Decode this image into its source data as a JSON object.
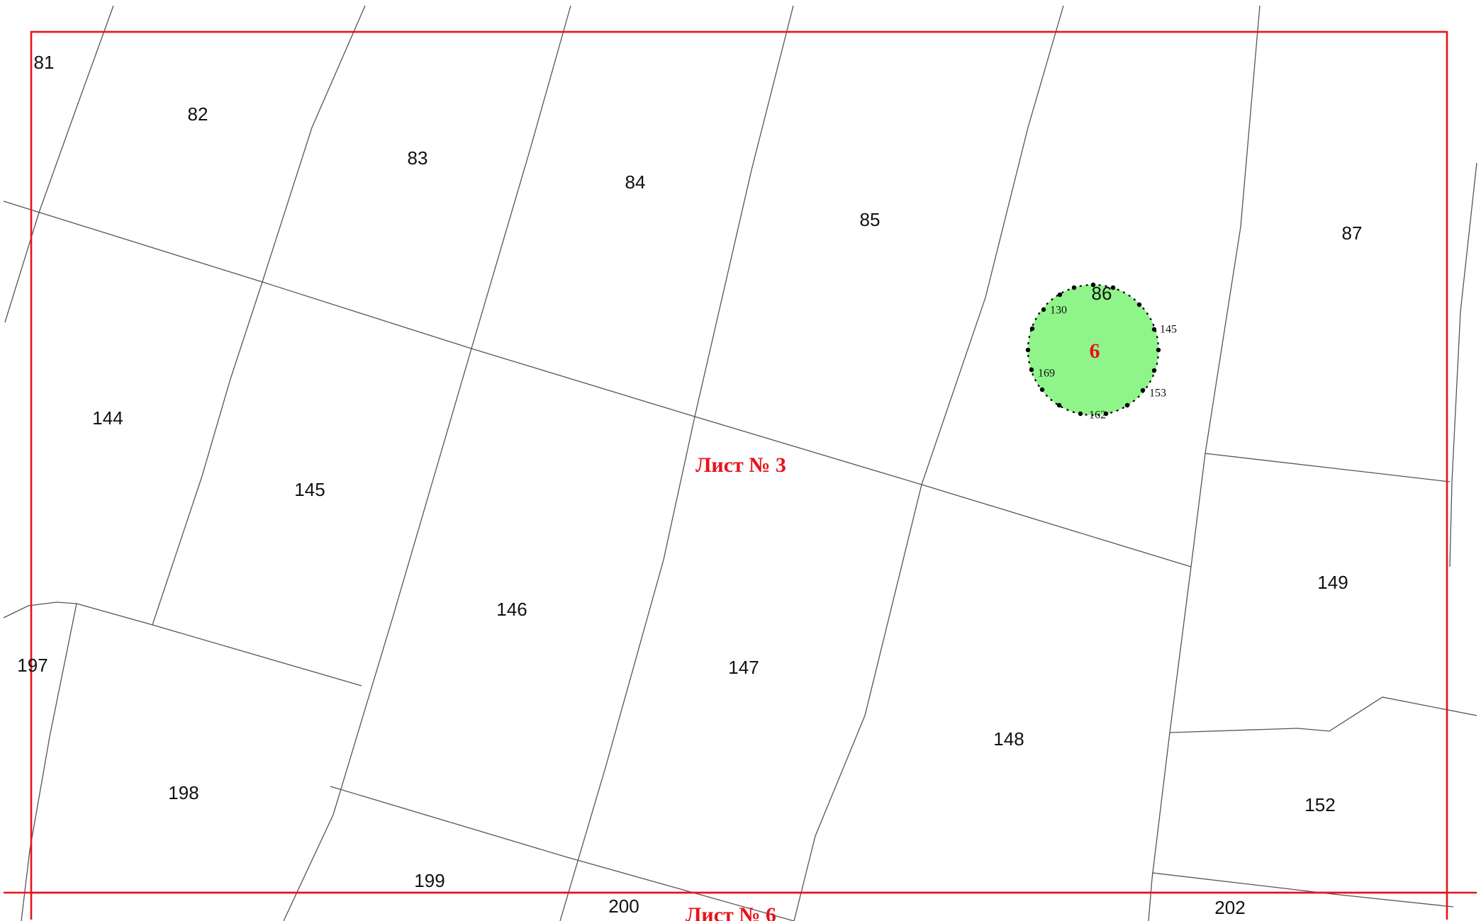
{
  "map": {
    "sheet_current": "Лист № 3",
    "sheet_below": "Лист № 6",
    "parcels": {
      "p81": "81",
      "p82": "82",
      "p83": "83",
      "p84": "84",
      "p85": "85",
      "p86": "86",
      "p87": "87",
      "p144": "144",
      "p145": "145",
      "p146": "146",
      "p147": "147",
      "p148": "148",
      "p149": "149",
      "p152": "152",
      "p197": "197",
      "p198": "198",
      "p199": "199",
      "p200": "200",
      "p202": "202"
    },
    "zone": {
      "label": "6",
      "fill_color": "#8ff58a",
      "points": {
        "pt130": "130",
        "pt145": "145",
        "pt153": "153",
        "pt162": "162",
        "pt169": "169"
      }
    },
    "frame_color": "#e8121b"
  }
}
